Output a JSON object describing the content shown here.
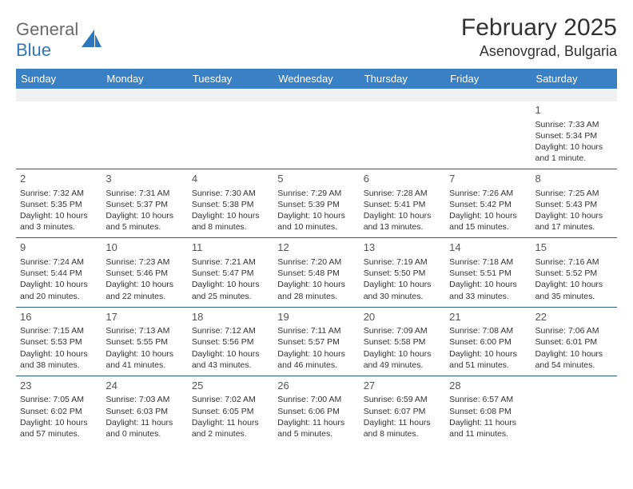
{
  "logo": {
    "general": "General",
    "blue": "Blue"
  },
  "header": {
    "month": "February 2025",
    "location": "Asenovgrad, Bulgaria"
  },
  "colors": {
    "accent": "#3a80c4",
    "rule": "#2c5d8f",
    "text": "#333333"
  },
  "daynames": [
    "Sunday",
    "Monday",
    "Tuesday",
    "Wednesday",
    "Thursday",
    "Friday",
    "Saturday"
  ],
  "weeks": [
    [
      null,
      null,
      null,
      null,
      null,
      null,
      {
        "n": "1",
        "sr": "Sunrise: 7:33 AM",
        "ss": "Sunset: 5:34 PM",
        "dl": "Daylight: 10 hours and 1 minute."
      }
    ],
    [
      {
        "n": "2",
        "sr": "Sunrise: 7:32 AM",
        "ss": "Sunset: 5:35 PM",
        "dl": "Daylight: 10 hours and 3 minutes."
      },
      {
        "n": "3",
        "sr": "Sunrise: 7:31 AM",
        "ss": "Sunset: 5:37 PM",
        "dl": "Daylight: 10 hours and 5 minutes."
      },
      {
        "n": "4",
        "sr": "Sunrise: 7:30 AM",
        "ss": "Sunset: 5:38 PM",
        "dl": "Daylight: 10 hours and 8 minutes."
      },
      {
        "n": "5",
        "sr": "Sunrise: 7:29 AM",
        "ss": "Sunset: 5:39 PM",
        "dl": "Daylight: 10 hours and 10 minutes."
      },
      {
        "n": "6",
        "sr": "Sunrise: 7:28 AM",
        "ss": "Sunset: 5:41 PM",
        "dl": "Daylight: 10 hours and 13 minutes."
      },
      {
        "n": "7",
        "sr": "Sunrise: 7:26 AM",
        "ss": "Sunset: 5:42 PM",
        "dl": "Daylight: 10 hours and 15 minutes."
      },
      {
        "n": "8",
        "sr": "Sunrise: 7:25 AM",
        "ss": "Sunset: 5:43 PM",
        "dl": "Daylight: 10 hours and 17 minutes."
      }
    ],
    [
      {
        "n": "9",
        "sr": "Sunrise: 7:24 AM",
        "ss": "Sunset: 5:44 PM",
        "dl": "Daylight: 10 hours and 20 minutes."
      },
      {
        "n": "10",
        "sr": "Sunrise: 7:23 AM",
        "ss": "Sunset: 5:46 PM",
        "dl": "Daylight: 10 hours and 22 minutes."
      },
      {
        "n": "11",
        "sr": "Sunrise: 7:21 AM",
        "ss": "Sunset: 5:47 PM",
        "dl": "Daylight: 10 hours and 25 minutes."
      },
      {
        "n": "12",
        "sr": "Sunrise: 7:20 AM",
        "ss": "Sunset: 5:48 PM",
        "dl": "Daylight: 10 hours and 28 minutes."
      },
      {
        "n": "13",
        "sr": "Sunrise: 7:19 AM",
        "ss": "Sunset: 5:50 PM",
        "dl": "Daylight: 10 hours and 30 minutes."
      },
      {
        "n": "14",
        "sr": "Sunrise: 7:18 AM",
        "ss": "Sunset: 5:51 PM",
        "dl": "Daylight: 10 hours and 33 minutes."
      },
      {
        "n": "15",
        "sr": "Sunrise: 7:16 AM",
        "ss": "Sunset: 5:52 PM",
        "dl": "Daylight: 10 hours and 35 minutes."
      }
    ],
    [
      {
        "n": "16",
        "sr": "Sunrise: 7:15 AM",
        "ss": "Sunset: 5:53 PM",
        "dl": "Daylight: 10 hours and 38 minutes."
      },
      {
        "n": "17",
        "sr": "Sunrise: 7:13 AM",
        "ss": "Sunset: 5:55 PM",
        "dl": "Daylight: 10 hours and 41 minutes."
      },
      {
        "n": "18",
        "sr": "Sunrise: 7:12 AM",
        "ss": "Sunset: 5:56 PM",
        "dl": "Daylight: 10 hours and 43 minutes."
      },
      {
        "n": "19",
        "sr": "Sunrise: 7:11 AM",
        "ss": "Sunset: 5:57 PM",
        "dl": "Daylight: 10 hours and 46 minutes."
      },
      {
        "n": "20",
        "sr": "Sunrise: 7:09 AM",
        "ss": "Sunset: 5:58 PM",
        "dl": "Daylight: 10 hours and 49 minutes."
      },
      {
        "n": "21",
        "sr": "Sunrise: 7:08 AM",
        "ss": "Sunset: 6:00 PM",
        "dl": "Daylight: 10 hours and 51 minutes."
      },
      {
        "n": "22",
        "sr": "Sunrise: 7:06 AM",
        "ss": "Sunset: 6:01 PM",
        "dl": "Daylight: 10 hours and 54 minutes."
      }
    ],
    [
      {
        "n": "23",
        "sr": "Sunrise: 7:05 AM",
        "ss": "Sunset: 6:02 PM",
        "dl": "Daylight: 10 hours and 57 minutes."
      },
      {
        "n": "24",
        "sr": "Sunrise: 7:03 AM",
        "ss": "Sunset: 6:03 PM",
        "dl": "Daylight: 11 hours and 0 minutes."
      },
      {
        "n": "25",
        "sr": "Sunrise: 7:02 AM",
        "ss": "Sunset: 6:05 PM",
        "dl": "Daylight: 11 hours and 2 minutes."
      },
      {
        "n": "26",
        "sr": "Sunrise: 7:00 AM",
        "ss": "Sunset: 6:06 PM",
        "dl": "Daylight: 11 hours and 5 minutes."
      },
      {
        "n": "27",
        "sr": "Sunrise: 6:59 AM",
        "ss": "Sunset: 6:07 PM",
        "dl": "Daylight: 11 hours and 8 minutes."
      },
      {
        "n": "28",
        "sr": "Sunrise: 6:57 AM",
        "ss": "Sunset: 6:08 PM",
        "dl": "Daylight: 11 hours and 11 minutes."
      },
      null
    ]
  ]
}
